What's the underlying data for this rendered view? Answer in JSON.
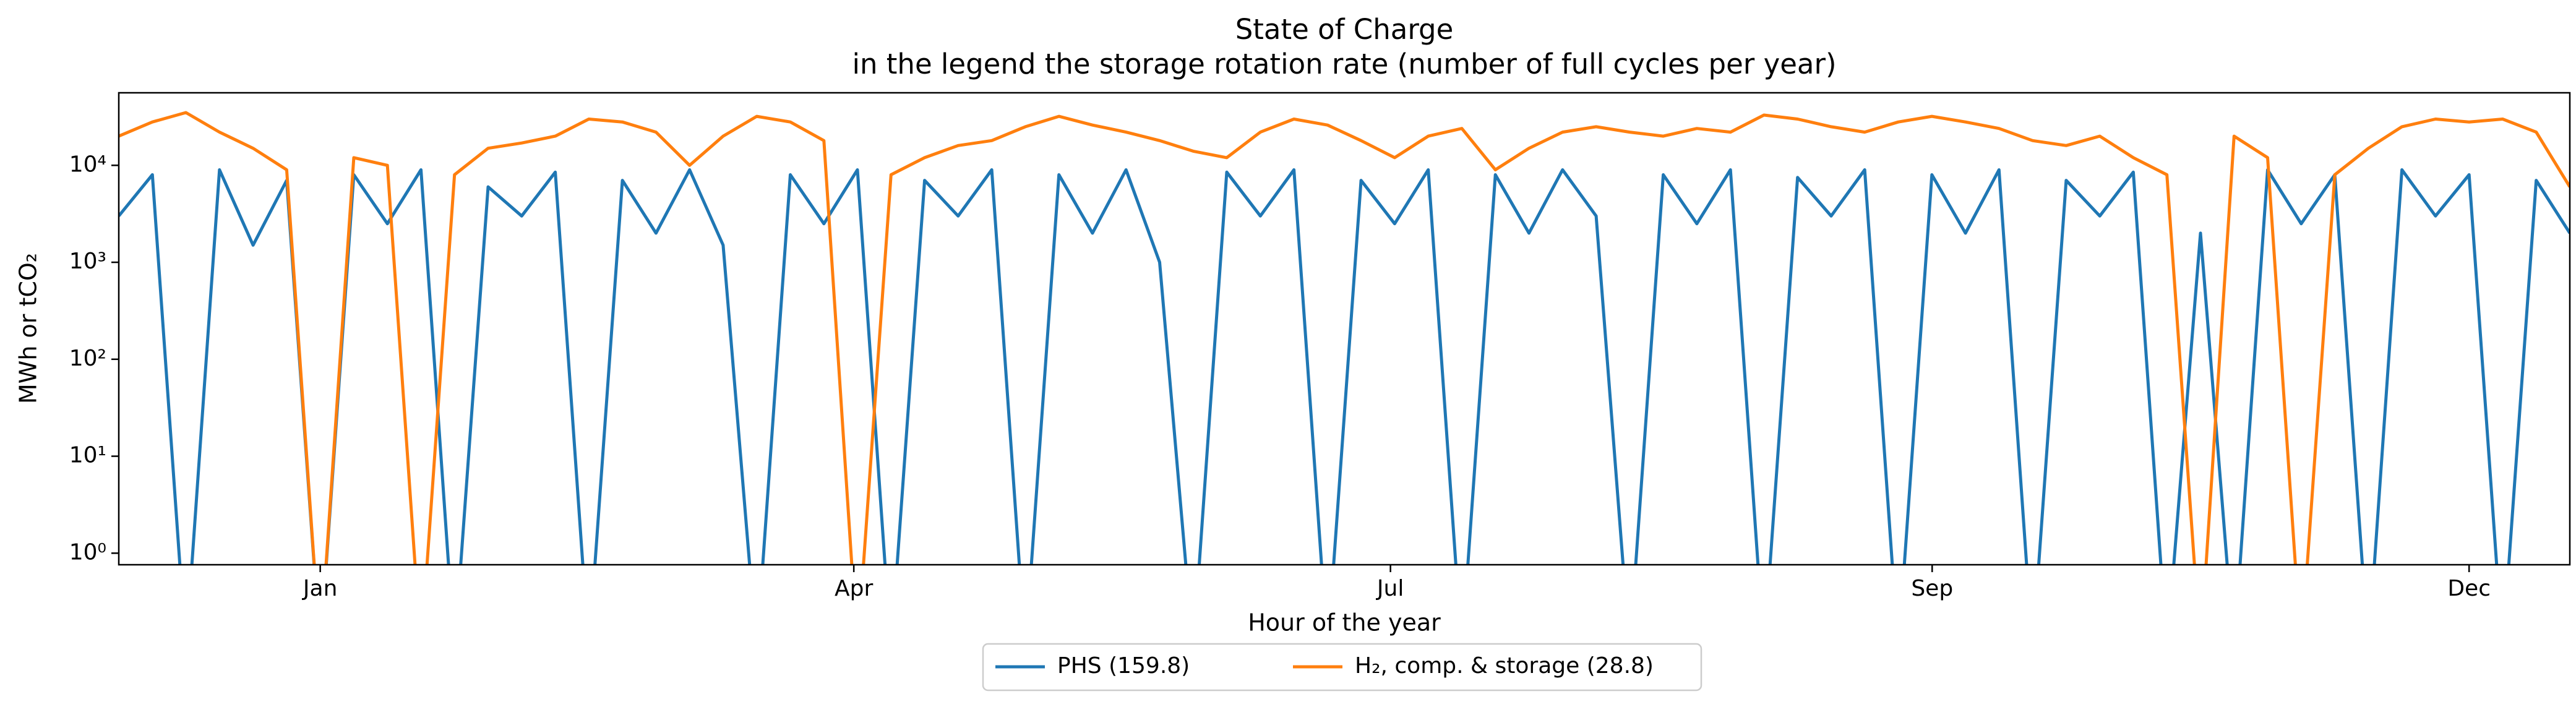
{
  "chart_data": {
    "type": "line",
    "title": "State of Charge",
    "subtitle": "in the legend the storage rotation rate (number of full cycles per year)",
    "x_label": "Hour of the year",
    "y_label": "MWh or tCO₂",
    "log_y": true,
    "legend": "lower center",
    "x": [
      0,
      120,
      240,
      360,
      480,
      600,
      720,
      840,
      960,
      1080,
      1200,
      1320,
      1440,
      1560,
      1680,
      1800,
      1920,
      2040,
      2160,
      2280,
      2400,
      2520,
      2640,
      2760,
      2880,
      3000,
      3120,
      3240,
      3360,
      3480,
      3600,
      3720,
      3840,
      3960,
      4080,
      4200,
      4320,
      4440,
      4560,
      4680,
      4800,
      4920,
      5040,
      5160,
      5280,
      5400,
      5520,
      5640,
      5760,
      5880,
      6000,
      6120,
      6240,
      6360,
      6480,
      6600,
      6720,
      6840,
      6960,
      7080,
      7200,
      7320,
      7440,
      7560,
      7680,
      7800,
      7920,
      8040,
      8160,
      8280,
      8400,
      8520,
      8640,
      8760
    ],
    "xlim": [
      0,
      8760
    ],
    "xticks": [
      {
        "value": 720,
        "label": "Jan"
      },
      {
        "value": 2627,
        "label": "Apr"
      },
      {
        "value": 4545,
        "label": "Jul"
      },
      {
        "value": 6481,
        "label": "Sep"
      },
      {
        "value": 8400,
        "label": "Dec"
      }
    ],
    "ylim": [
      0.76,
      56000
    ],
    "yticks": [
      {
        "value": 1,
        "label": "10⁰"
      },
      {
        "value": 10,
        "label": "10¹"
      },
      {
        "value": 100,
        "label": "10²"
      },
      {
        "value": 1000,
        "label": "10³"
      },
      {
        "value": 10000,
        "label": "10⁴"
      }
    ],
    "series": [
      {
        "name": "PHS (159.8)",
        "color": "#1f77b4",
        "values": [
          3000,
          8000,
          0.1,
          9000,
          1500,
          7000,
          0.1,
          8000,
          2500,
          9000,
          0.1,
          6000,
          3000,
          8500,
          0.1,
          7000,
          2000,
          9000,
          1500,
          0.1,
          8000,
          2500,
          9000,
          0.1,
          7000,
          3000,
          9000,
          0.1,
          8000,
          2000,
          9000,
          1000,
          0.1,
          8500,
          3000,
          9000,
          0.1,
          7000,
          2500,
          9000,
          0.1,
          8000,
          2000,
          9000,
          3000,
          0.1,
          8000,
          2500,
          9000,
          0.1,
          7500,
          3000,
          9000,
          0.1,
          8000,
          2000,
          9000,
          0.1,
          7000,
          3000,
          8500,
          0.1,
          2000,
          0.1,
          9000,
          2500,
          8000,
          0.1,
          9000,
          3000,
          8000,
          0.1,
          7000,
          2000
        ]
      },
      {
        "name": "H₂, comp. & storage (28.8)",
        "color": "#ff7f0e",
        "values": [
          20000,
          28000,
          35000,
          22000,
          15000,
          9000,
          0.1,
          12000,
          10000,
          0.1,
          8000,
          15000,
          17000,
          20000,
          30000,
          28000,
          22000,
          10000,
          20000,
          32000,
          28000,
          18000,
          0.1,
          8000,
          12000,
          16000,
          18000,
          25000,
          32000,
          26000,
          22000,
          18000,
          14000,
          12000,
          22000,
          30000,
          26000,
          18000,
          12000,
          20000,
          24000,
          9000,
          15000,
          22000,
          25000,
          22000,
          20000,
          24000,
          22000,
          33000,
          30000,
          25000,
          22000,
          28000,
          32000,
          28000,
          24000,
          18000,
          16000,
          20000,
          12000,
          8000,
          0.1,
          20000,
          12000,
          0.1,
          8000,
          15000,
          25000,
          30000,
          28000,
          30000,
          22000,
          6000
        ]
      }
    ]
  }
}
